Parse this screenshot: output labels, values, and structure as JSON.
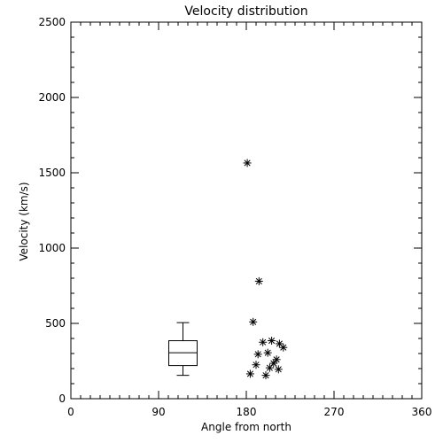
{
  "chart_data": {
    "type": "scatter",
    "title": "Velocity distribution",
    "xlabel": "Angle from north",
    "ylabel": "Velocity (km/s)",
    "xlim": [
      0,
      360
    ],
    "ylim": [
      0,
      2500
    ],
    "x_major_ticks": [
      0,
      90,
      180,
      270,
      360
    ],
    "x_minor_step": 10,
    "y_major_ticks": [
      0,
      500,
      1000,
      1500,
      2000,
      2500
    ],
    "y_minor_step": 100,
    "grid": false,
    "marker": "asterisk",
    "points": [
      {
        "x": 181,
        "y": 1565
      },
      {
        "x": 193,
        "y": 780
      },
      {
        "x": 187,
        "y": 510
      },
      {
        "x": 197,
        "y": 375
      },
      {
        "x": 206,
        "y": 385
      },
      {
        "x": 214,
        "y": 365
      },
      {
        "x": 218,
        "y": 340
      },
      {
        "x": 192,
        "y": 295
      },
      {
        "x": 202,
        "y": 305
      },
      {
        "x": 211,
        "y": 260
      },
      {
        "x": 208,
        "y": 235
      },
      {
        "x": 190,
        "y": 225
      },
      {
        "x": 204,
        "y": 205
      },
      {
        "x": 213,
        "y": 195
      },
      {
        "x": 184,
        "y": 165
      },
      {
        "x": 200,
        "y": 155
      }
    ],
    "boxplot": {
      "x": 115,
      "whisker_low": 155,
      "q1": 220,
      "median": 305,
      "q3": 385,
      "whisker_high": 505
    }
  }
}
